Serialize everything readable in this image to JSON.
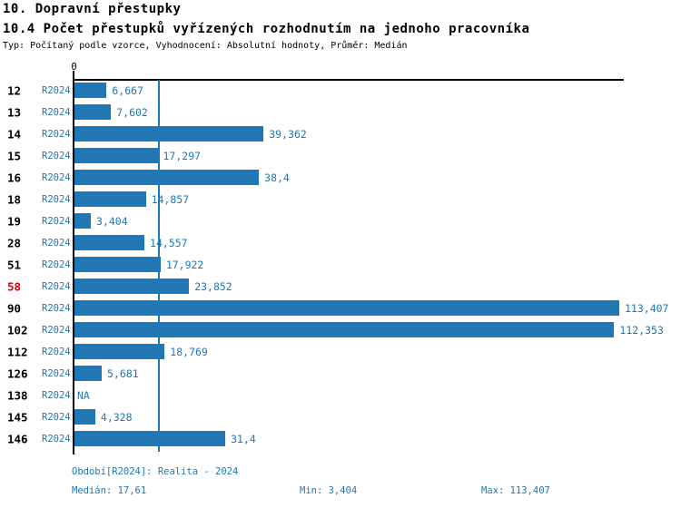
{
  "header": {
    "title": "10. Dopravní přestupky",
    "subtitle": "10.4 Počet přestupků vyřízených rozhodnutím na jednoho pracovníka",
    "meta": "Typ: Počítaný podle vzorce, Vyhodnocení: Absolutní hodnoty, Průměr: Medián"
  },
  "axis": {
    "zero_label": "0"
  },
  "colors": {
    "bar": "#2077b4",
    "accent_blue": "#1f77b4",
    "highlight_red": "#dd0000",
    "axis_black": "#000000"
  },
  "rows": [
    {
      "id": "12",
      "period": "R2024",
      "value_label": "6,667",
      "value": 6.667,
      "highlight": false
    },
    {
      "id": "13",
      "period": "R2024",
      "value_label": "7,602",
      "value": 7.602,
      "highlight": false
    },
    {
      "id": "14",
      "period": "R2024",
      "value_label": "39,362",
      "value": 39.362,
      "highlight": false
    },
    {
      "id": "15",
      "period": "R2024",
      "value_label": "17,297",
      "value": 17.297,
      "highlight": false
    },
    {
      "id": "16",
      "period": "R2024",
      "value_label": "38,4",
      "value": 38.4,
      "highlight": false
    },
    {
      "id": "18",
      "period": "R2024",
      "value_label": "14,857",
      "value": 14.857,
      "highlight": false
    },
    {
      "id": "19",
      "period": "R2024",
      "value_label": "3,404",
      "value": 3.404,
      "highlight": false
    },
    {
      "id": "28",
      "period": "R2024",
      "value_label": "14,557",
      "value": 14.557,
      "highlight": false
    },
    {
      "id": "51",
      "period": "R2024",
      "value_label": "17,922",
      "value": 17.922,
      "highlight": false
    },
    {
      "id": "58",
      "period": "R2024",
      "value_label": "23,852",
      "value": 23.852,
      "highlight": true
    },
    {
      "id": "90",
      "period": "R2024",
      "value_label": "113,407",
      "value": 113.407,
      "highlight": false
    },
    {
      "id": "102",
      "period": "R2024",
      "value_label": "112,353",
      "value": 112.353,
      "highlight": false
    },
    {
      "id": "112",
      "period": "R2024",
      "value_label": "18,769",
      "value": 18.769,
      "highlight": false
    },
    {
      "id": "126",
      "period": "R2024",
      "value_label": "5,681",
      "value": 5.681,
      "highlight": false
    },
    {
      "id": "138",
      "period": "R2024",
      "value_label": "NA",
      "value": null,
      "highlight": false
    },
    {
      "id": "145",
      "period": "R2024",
      "value_label": "4,328",
      "value": 4.328,
      "highlight": false
    },
    {
      "id": "146",
      "period": "R2024",
      "value_label": "31,4",
      "value": 31.4,
      "highlight": false
    }
  ],
  "footer": {
    "period_line": "Období[R2024]: Realita - 2024",
    "median": "Medián: 17,61",
    "min": "Min: 3,404",
    "max": "Max: 113,407"
  },
  "chart_data": {
    "type": "bar",
    "orientation": "horizontal",
    "title": "10.4 Počet přestupků vyřízených rozhodnutím na jednoho pracovníka",
    "xlabel": "",
    "ylabel": "",
    "categories": [
      "12",
      "13",
      "14",
      "15",
      "16",
      "18",
      "19",
      "28",
      "51",
      "58",
      "90",
      "102",
      "112",
      "126",
      "138",
      "145",
      "146"
    ],
    "series": [
      {
        "name": "R2024",
        "values": [
          6.667,
          7.602,
          39.362,
          17.297,
          38.4,
          14.857,
          3.404,
          14.557,
          17.922,
          23.852,
          113.407,
          112.353,
          18.769,
          5.681,
          null,
          4.328,
          31.4
        ]
      }
    ],
    "median_value": 17.61,
    "min_value": 3.404,
    "max_value": 113.407,
    "xlim": [
      0,
      113.407
    ],
    "grid": false,
    "legend": "none",
    "annotations": [
      "value labels at bar ends",
      "vertical median reference line"
    ]
  }
}
